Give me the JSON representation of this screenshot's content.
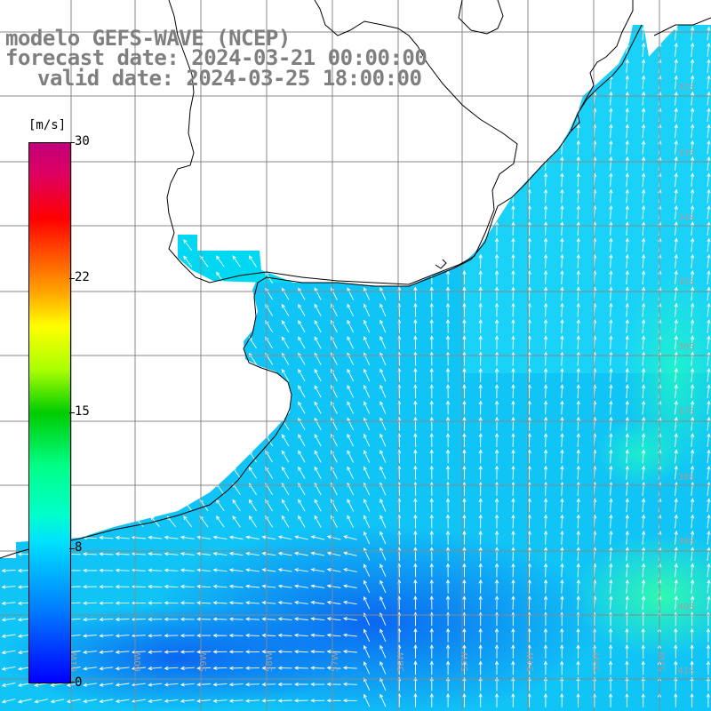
{
  "title": {
    "line1": "modelo GEFS-WAVE (NCEP)",
    "line2": "forecast date: 2024-03-21 00:00:00",
    "line3": "valid date: 2024-03-25 18:00:00"
  },
  "colorbar": {
    "unit": "[m/s]",
    "ticks": [
      "30",
      "22",
      "15",
      "8",
      "0"
    ],
    "tick_values": [
      30,
      22,
      15,
      8,
      0
    ]
  },
  "map": {
    "lat_labels": [
      "32S",
      "33S",
      "34S",
      "35S",
      "36S",
      "37S",
      "38S",
      "39S",
      "40S",
      "41S"
    ],
    "lon_labels": [
      "61W",
      "60W",
      "59W",
      "58W",
      "57W",
      "56W",
      "55W",
      "54W",
      "53W",
      "52W"
    ],
    "grid_color": "#888888",
    "coast_color": "#000000",
    "arrow_color": "#ffffff"
  }
}
